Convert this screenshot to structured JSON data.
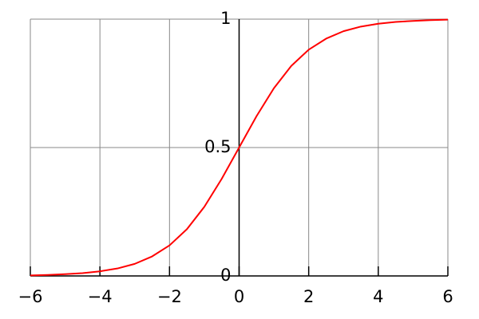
{
  "chart_data": {
    "type": "line",
    "x": [
      -6,
      -5.5,
      -5,
      -4.5,
      -4,
      -3.5,
      -3,
      -2.5,
      -2,
      -1.5,
      -1,
      -0.5,
      0,
      0.5,
      1,
      1.5,
      2,
      2.5,
      3,
      3.5,
      4,
      4.5,
      5,
      5.5,
      6
    ],
    "values": [
      0.002,
      0.004,
      0.007,
      0.011,
      0.018,
      0.029,
      0.047,
      0.076,
      0.119,
      0.182,
      0.269,
      0.378,
      0.5,
      0.622,
      0.731,
      0.818,
      0.881,
      0.924,
      0.953,
      0.971,
      0.982,
      0.989,
      0.993,
      0.996,
      0.998
    ],
    "color": "#ff0000",
    "xlim": [
      -6,
      6
    ],
    "xticks": [
      {
        "value": -6,
        "label": "−6"
      },
      {
        "value": -4,
        "label": "−4"
      },
      {
        "value": -2,
        "label": "−2"
      },
      0,
      2,
      4,
      6
    ],
    "ylim": [
      0,
      1
    ],
    "yticks": [
      0,
      0.5,
      1
    ],
    "grid": true
  }
}
